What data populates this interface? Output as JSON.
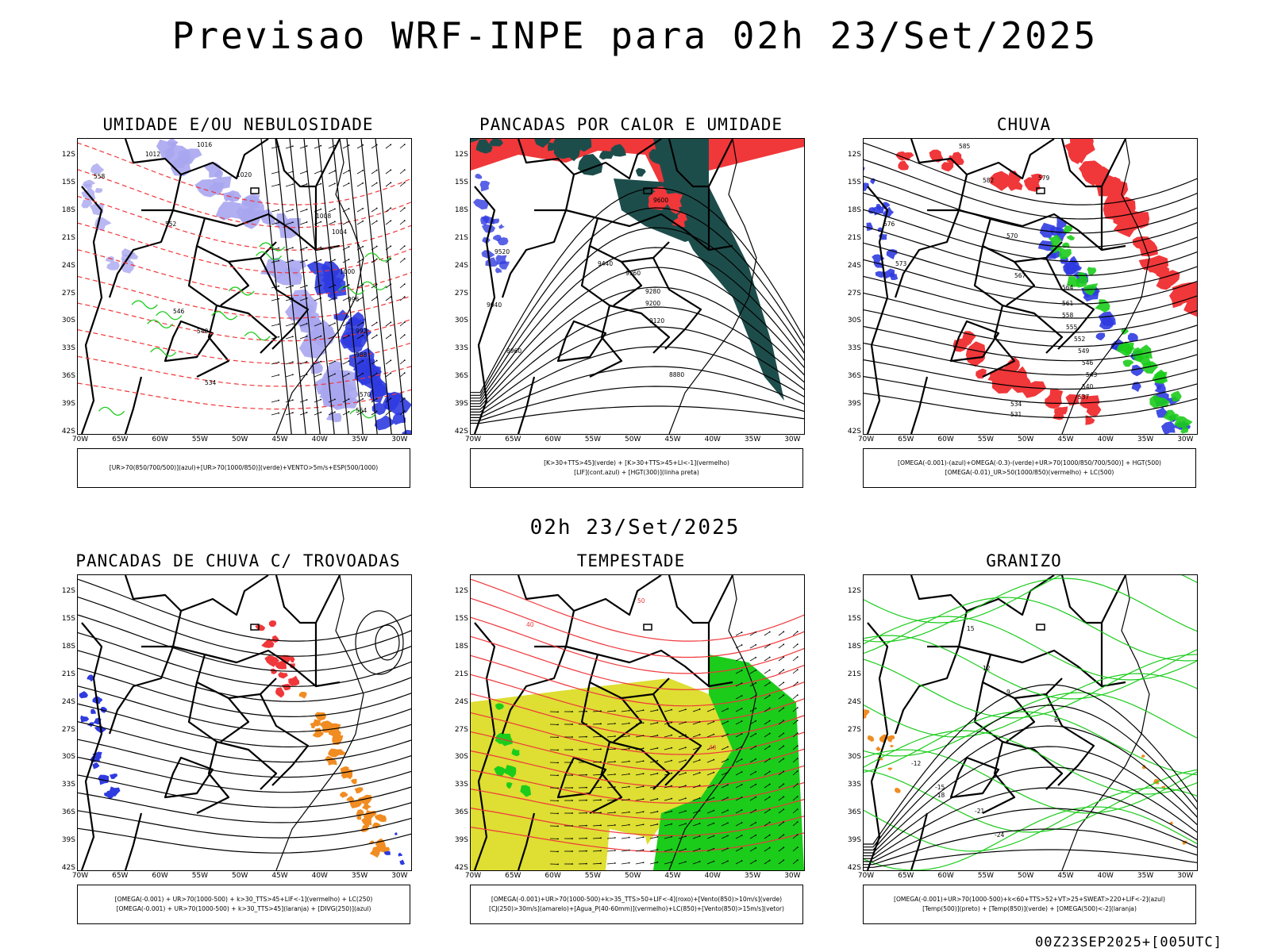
{
  "title": "Previsao WRF-INPE  para 02h 23/Set/2025",
  "mid_title": "02h 23/Set/2025",
  "footer": "00Z23SEP2025+[005UTC]",
  "axes": {
    "lat_labels": [
      "12S",
      "15S",
      "18S",
      "21S",
      "24S",
      "27S",
      "30S",
      "33S",
      "36S",
      "39S",
      "42S"
    ],
    "lon_labels": [
      "70W",
      "65W",
      "60W",
      "55W",
      "50W",
      "45W",
      "40W",
      "35W",
      "30W"
    ]
  },
  "colors": {
    "lilac": "#a9a6ef",
    "blue": "#2f3be0",
    "green": "#1bcc1b",
    "red": "#f0373a",
    "darkteal": "#1d4d4b",
    "yellow": "#dede33",
    "orange": "#f08c22"
  },
  "panels": [
    {
      "title": "UMIDADE E/OU NEBULOSIDADE",
      "legend": [
        "[UR>70(850/700/500)](azul)+[UR>70(1000/850)](verde)+VENTO>5m/s+ESP(500/1000)"
      ],
      "labels": [
        "1012",
        "1016",
        "1020",
        "1008",
        "1004",
        "1000",
        "996",
        "992",
        "988",
        "570",
        "564",
        "558",
        "552",
        "546",
        "540",
        "534"
      ]
    },
    {
      "title": "PANCADAS POR CALOR E UMIDADE",
      "legend": [
        "[K>30+TTS>45](verde) + [K>30+TTS>45+LI<-1](vermelho)",
        "[LIF](cont.azul) + [HGT(300)](linha preta)"
      ],
      "labels": [
        "9600",
        "9520",
        "9440",
        "9360",
        "9280",
        "9200",
        "9120",
        "9040",
        "8960",
        "8880"
      ]
    },
    {
      "title": "CHUVA",
      "legend": [
        "[OMEGA(-0.001)-(azul)+OMEGA(-0.3)-(verde)+UR>70(1000/850/700/500)] + HGT(500)",
        "[OMEGA(-0.01)_UR>50(1000/850)(vermelho) + LC(500)"
      ],
      "labels": [
        "585",
        "582",
        "579",
        "576",
        "573",
        "570",
        "567",
        "564",
        "561",
        "558",
        "555",
        "552",
        "549",
        "546",
        "543",
        "540",
        "537",
        "534",
        "531"
      ]
    },
    {
      "title": "PANCADAS DE CHUVA C/ TROVOADAS",
      "legend": [
        "[OMEGA(-0.001) + UR>70(1000-500) + k>30_TTS>45+LIF<-1](vermelho) + LC(250)",
        "[OMEGA(-0.001) + UR>70(1000-500) + k>30_TTS>45](laranja) + [DIVG(250)](azul)"
      ],
      "labels": []
    },
    {
      "title": "TEMPESTADE",
      "legend": [
        "[OMEGA(-0.001)+UR>70(1000-500)+k>35_TTS>50+LIF<-4](roxo)+[Vento(850)>10m/s](verde)",
        "[CJ(250)>30m/s](amarelo)+[Agua_P(40-60mm)](vermelho)+LC(850)+[Vento(850)>15m/s](vetor)"
      ],
      "labels": [
        "40",
        "50",
        "40"
      ]
    },
    {
      "title": "GRANIZO",
      "legend": [
        "[OMEGA(-0.001)+UR>70(1000-500)+k<60+TTS>52+VT>25+SWEAT>220+LIF<-2](azul)",
        "[Temp(500)](preto) + [Temp(850)](verde) + [OMEGA(500)<-2](laranja)"
      ],
      "labels": [
        "15",
        "12",
        "9",
        "6",
        "-12",
        "-15",
        "-18",
        "-21",
        "-24"
      ]
    }
  ]
}
